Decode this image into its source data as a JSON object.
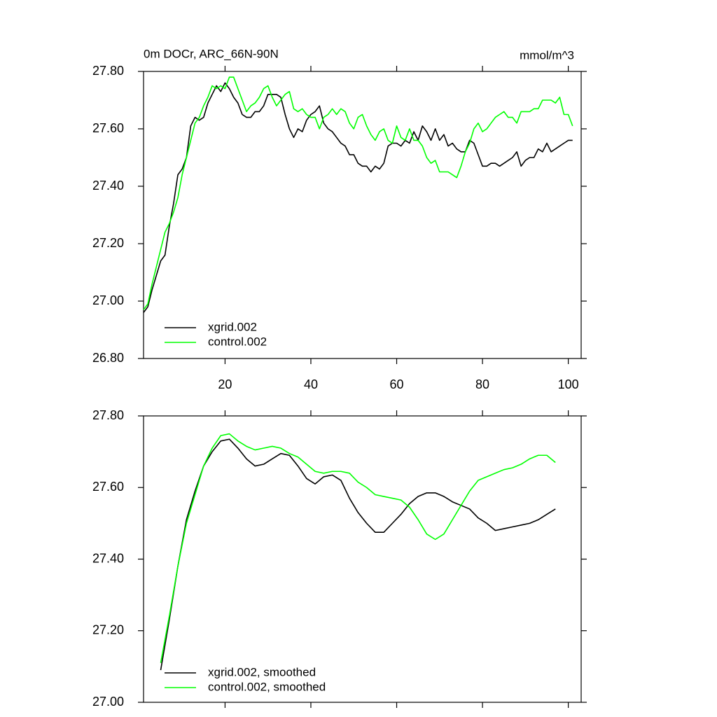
{
  "chart_data": [
    {
      "type": "line",
      "title": "0m DOCr, ARC_66N-90N",
      "units_label": "mmol/m^3",
      "x": [
        1,
        2,
        3,
        4,
        5,
        6,
        7,
        8,
        9,
        10,
        11,
        12,
        13,
        14,
        15,
        16,
        17,
        18,
        19,
        20,
        21,
        22,
        23,
        24,
        25,
        26,
        27,
        28,
        29,
        30,
        31,
        32,
        33,
        34,
        35,
        36,
        37,
        38,
        39,
        40,
        41,
        42,
        43,
        44,
        45,
        46,
        47,
        48,
        49,
        50,
        51,
        52,
        53,
        54,
        55,
        56,
        57,
        58,
        59,
        60,
        61,
        62,
        63,
        64,
        65,
        66,
        67,
        68,
        69,
        70,
        71,
        72,
        73,
        74,
        75,
        76,
        77,
        78,
        79,
        80,
        81,
        82,
        83,
        84,
        85,
        86,
        87,
        88,
        89,
        90,
        91,
        92,
        93,
        94,
        95,
        96,
        97,
        98,
        99,
        100,
        101
      ],
      "series": [
        {
          "name": "xgrid.002",
          "color": "#000000",
          "values": [
            26.96,
            26.98,
            27.04,
            27.09,
            27.14,
            27.16,
            27.26,
            27.34,
            27.44,
            27.46,
            27.5,
            27.61,
            27.64,
            27.63,
            27.64,
            27.69,
            27.72,
            27.75,
            27.73,
            27.76,
            27.74,
            27.71,
            27.69,
            27.65,
            27.64,
            27.64,
            27.66,
            27.66,
            27.68,
            27.72,
            27.72,
            27.72,
            27.71,
            27.65,
            27.6,
            27.57,
            27.6,
            27.59,
            27.63,
            27.65,
            27.66,
            27.68,
            27.62,
            27.6,
            27.59,
            27.57,
            27.55,
            27.54,
            27.51,
            27.51,
            27.48,
            27.47,
            27.47,
            27.45,
            27.47,
            27.46,
            27.48,
            27.54,
            27.55,
            27.55,
            27.54,
            27.56,
            27.55,
            27.59,
            27.56,
            27.61,
            27.59,
            27.56,
            27.6,
            27.56,
            27.58,
            27.54,
            27.55,
            27.53,
            27.52,
            27.52,
            27.56,
            27.55,
            27.51,
            27.47,
            27.47,
            27.48,
            27.48,
            27.47,
            27.48,
            27.49,
            27.5,
            27.52,
            27.47,
            27.49,
            27.5,
            27.5,
            27.53,
            27.52,
            27.55,
            27.52,
            27.53,
            27.54,
            27.55,
            27.56,
            27.56
          ]
        },
        {
          "name": "control.002",
          "color": "#00ff00",
          "values": [
            26.97,
            26.99,
            27.06,
            27.12,
            27.18,
            27.24,
            27.27,
            27.31,
            27.36,
            27.44,
            27.5,
            27.56,
            27.62,
            27.64,
            27.68,
            27.71,
            27.75,
            27.74,
            27.75,
            27.74,
            27.78,
            27.78,
            27.74,
            27.7,
            27.66,
            27.68,
            27.69,
            27.71,
            27.74,
            27.75,
            27.71,
            27.68,
            27.7,
            27.72,
            27.73,
            27.67,
            27.66,
            27.67,
            27.65,
            27.64,
            27.64,
            27.6,
            27.64,
            27.65,
            27.67,
            27.65,
            27.67,
            27.66,
            27.62,
            27.6,
            27.64,
            27.65,
            27.61,
            27.58,
            27.56,
            27.59,
            27.6,
            27.56,
            27.55,
            27.61,
            27.57,
            27.56,
            27.6,
            27.56,
            27.56,
            27.54,
            27.5,
            27.48,
            27.49,
            27.45,
            27.45,
            27.45,
            27.44,
            27.43,
            27.47,
            27.52,
            27.55,
            27.6,
            27.62,
            27.59,
            27.6,
            27.62,
            27.64,
            27.65,
            27.66,
            27.64,
            27.64,
            27.62,
            27.66,
            27.66,
            27.66,
            27.67,
            27.67,
            27.7,
            27.7,
            27.7,
            27.69,
            27.71,
            27.65,
            27.65,
            27.61
          ]
        }
      ],
      "xlim": [
        1,
        103
      ],
      "xticks": [
        20,
        40,
        60,
        80,
        100
      ],
      "ylim": [
        26.8,
        27.8
      ],
      "yticks": [
        {
          "value": 26.8,
          "label": "26.80"
        },
        {
          "value": 27.0,
          "label": "27.00"
        },
        {
          "value": 27.2,
          "label": "27.20"
        },
        {
          "value": 27.4,
          "label": "27.40"
        },
        {
          "value": 27.6,
          "label": "27.60"
        },
        {
          "value": 27.8,
          "label": "27.80"
        }
      ],
      "grid": false,
      "legend": "lower left"
    },
    {
      "type": "line",
      "x": [
        5,
        7,
        9,
        11,
        13,
        15,
        17,
        19,
        21,
        23,
        25,
        27,
        29,
        31,
        33,
        35,
        37,
        39,
        41,
        43,
        45,
        47,
        49,
        51,
        53,
        55,
        57,
        59,
        61,
        63,
        65,
        67,
        69,
        71,
        73,
        75,
        77,
        79,
        81,
        83,
        85,
        87,
        89,
        91,
        93,
        95,
        97
      ],
      "series": [
        {
          "name": "xgrid.002, smoothed",
          "color": "#000000",
          "values": [
            27.09,
            27.23,
            27.38,
            27.51,
            27.59,
            27.66,
            27.7,
            27.73,
            27.735,
            27.71,
            27.68,
            27.66,
            27.665,
            27.68,
            27.695,
            27.69,
            27.66,
            27.625,
            27.61,
            27.63,
            27.635,
            27.62,
            27.57,
            27.53,
            27.5,
            27.475,
            27.475,
            27.5,
            27.525,
            27.555,
            27.575,
            27.585,
            27.585,
            27.575,
            27.56,
            27.55,
            27.54,
            27.515,
            27.5,
            27.48,
            27.485,
            27.49,
            27.495,
            27.5,
            27.51,
            27.525,
            27.54
          ]
        },
        {
          "name": "control.002, smoothed",
          "color": "#00ff00",
          "values": [
            27.11,
            27.24,
            27.38,
            27.5,
            27.58,
            27.66,
            27.71,
            27.745,
            27.75,
            27.73,
            27.715,
            27.705,
            27.71,
            27.715,
            27.71,
            27.695,
            27.685,
            27.665,
            27.645,
            27.64,
            27.645,
            27.645,
            27.64,
            27.615,
            27.6,
            27.58,
            27.575,
            27.57,
            27.565,
            27.545,
            27.51,
            27.47,
            27.455,
            27.47,
            27.51,
            27.55,
            27.59,
            27.62,
            27.63,
            27.64,
            27.65,
            27.655,
            27.665,
            27.68,
            27.69,
            27.69,
            27.67
          ]
        }
      ],
      "xlim": [
        1,
        103
      ],
      "xticks": [
        20,
        40,
        60,
        80,
        100
      ],
      "ylim": [
        27.0,
        27.8
      ],
      "yticks": [
        {
          "value": 27.0,
          "label": "27.00"
        },
        {
          "value": 27.2,
          "label": "27.20"
        },
        {
          "value": 27.4,
          "label": "27.40"
        },
        {
          "value": 27.6,
          "label": "27.60"
        },
        {
          "value": 27.8,
          "label": "27.80"
        }
      ],
      "grid": false,
      "legend": "lower left"
    }
  ]
}
